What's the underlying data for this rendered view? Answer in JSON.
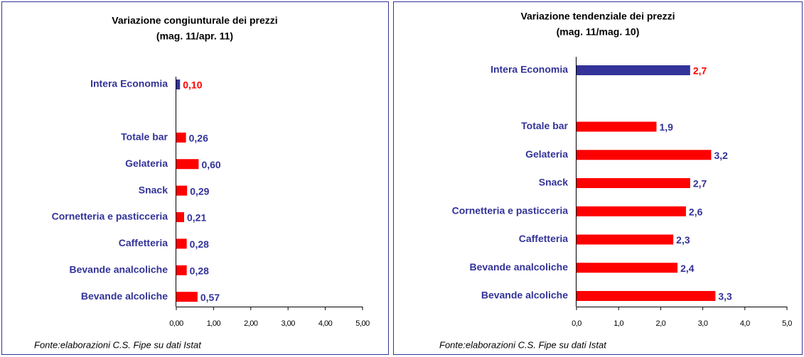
{
  "chart_data": [
    {
      "type": "bar",
      "orientation": "horizontal",
      "title": "Variazione congiunturale dei prezzi",
      "subtitle": "(mag. 11/apr. 11)",
      "categories": [
        "Intera Economia",
        null,
        "Totale bar",
        "Gelateria",
        "Snack",
        "Cornetteria e pasticceria",
        "Caffetteria",
        "Bevande analcoliche",
        "Bevande alcoliche"
      ],
      "values": [
        0.1,
        null,
        0.26,
        0.6,
        0.29,
        0.21,
        0.28,
        0.28,
        0.57
      ],
      "value_labels": [
        "0,10",
        null,
        "0,26",
        "0,60",
        "0,29",
        "0,21",
        "0,28",
        "0,28",
        "0,57"
      ],
      "colors": [
        "#333399",
        null,
        "#ff0000",
        "#ff0000",
        "#ff0000",
        "#ff0000",
        "#ff0000",
        "#ff0000",
        "#ff0000"
      ],
      "value_label_colors": [
        "#ff0000",
        null,
        "#333399",
        "#333399",
        "#333399",
        "#333399",
        "#333399",
        "#333399",
        "#333399"
      ],
      "xlim": [
        0,
        5
      ],
      "xticks": [
        {
          "value": 0,
          "label": "0,00"
        },
        {
          "value": 1,
          "label": "1,00"
        },
        {
          "value": 2,
          "label": "2,00"
        },
        {
          "value": 3,
          "label": "3,00"
        },
        {
          "value": 4,
          "label": "4,00"
        },
        {
          "value": 5,
          "label": "5,00"
        }
      ],
      "note": "Fonte:elaborazioni C.S. Fipe su dati Istat"
    },
    {
      "type": "bar",
      "orientation": "horizontal",
      "title": "Variazione tendenziale dei prezzi",
      "subtitle": "(mag. 11/mag. 10)",
      "categories": [
        "Intera Economia",
        null,
        "Totale bar",
        "Gelateria",
        "Snack",
        "Cornetteria e pasticceria",
        "Caffetteria",
        "Bevande analcoliche",
        "Bevande alcoliche"
      ],
      "values": [
        2.7,
        null,
        1.9,
        3.2,
        2.7,
        2.6,
        2.3,
        2.4,
        3.3
      ],
      "value_labels": [
        "2,7",
        null,
        "1,9",
        "3,2",
        "2,7",
        "2,6",
        "2,3",
        "2,4",
        "3,3"
      ],
      "colors": [
        "#333399",
        null,
        "#ff0000",
        "#ff0000",
        "#ff0000",
        "#ff0000",
        "#ff0000",
        "#ff0000",
        "#ff0000"
      ],
      "value_label_colors": [
        "#ff0000",
        null,
        "#333399",
        "#333399",
        "#333399",
        "#333399",
        "#333399",
        "#333399",
        "#333399"
      ],
      "xlim": [
        0,
        5
      ],
      "xticks": [
        {
          "value": 0,
          "label": "0,0"
        },
        {
          "value": 1,
          "label": "1,0"
        },
        {
          "value": 2,
          "label": "2,0"
        },
        {
          "value": 3,
          "label": "3,0"
        },
        {
          "value": 4,
          "label": "4,0"
        },
        {
          "value": 5,
          "label": "5,0"
        }
      ],
      "note": "Fonte:elaborazioni C.S. Fipe su dati Istat"
    }
  ]
}
